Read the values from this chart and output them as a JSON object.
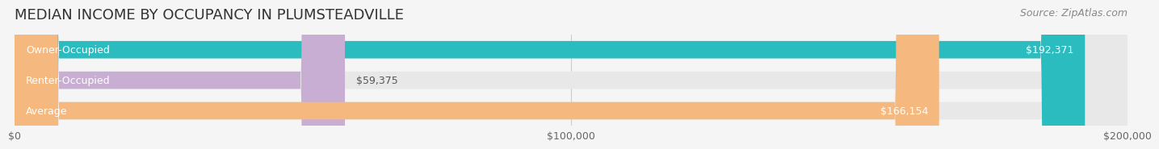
{
  "title": "MEDIAN INCOME BY OCCUPANCY IN PLUMSTEADVILLE",
  "source": "Source: ZipAtlas.com",
  "categories": [
    "Owner-Occupied",
    "Renter-Occupied",
    "Average"
  ],
  "values": [
    192371,
    59375,
    166154
  ],
  "bar_colors": [
    "#2bbcbf",
    "#c9aed4",
    "#f5b97f"
  ],
  "bar_labels": [
    "$192,371",
    "$59,375",
    "$166,154"
  ],
  "xlim": [
    0,
    200000
  ],
  "xticks": [
    0,
    100000,
    200000
  ],
  "xtick_labels": [
    "$0",
    "$100,000",
    "$200,000"
  ],
  "background_color": "#f5f5f5",
  "bar_bg_color": "#e8e8e8",
  "title_fontsize": 13,
  "label_fontsize": 9,
  "source_fontsize": 9,
  "tick_fontsize": 9
}
